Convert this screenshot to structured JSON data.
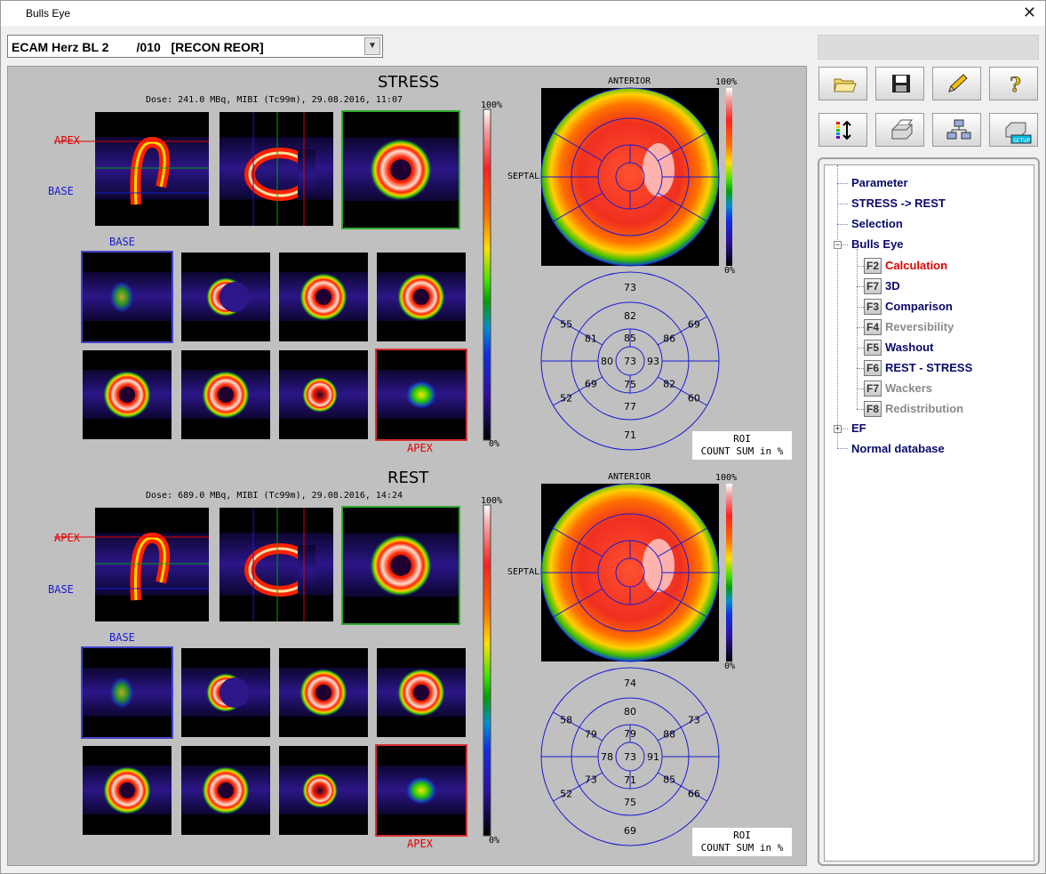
{
  "window": {
    "title": "Bulls Eye",
    "close_glyph": "✕"
  },
  "study": {
    "selected": "ECAM Herz BL 2        /010   [RECON REOR]"
  },
  "toolbar": {
    "row1": [
      "folder-open-icon",
      "save-disk-icon",
      "pencil-edit-icon",
      "help-question-icon"
    ],
    "row2": [
      "colormap-scale-icon",
      "print-icon",
      "network-icon",
      "print-setup-icon"
    ],
    "setup_label": "SETUP"
  },
  "stress": {
    "title": "STRESS",
    "dose": "Dose: 241.0 MBq, MIBI (Tc99m), 29.08.2016, 11:07",
    "apex": "APEX",
    "base": "BASE",
    "base2": "BASE",
    "apex2": "APEX",
    "colorbar_top": "100%",
    "colorbar_bottom": "0%",
    "polar_top": "100%",
    "polar_bottom": "0%",
    "anterior": "ANTERIOR",
    "septal": "SEPTAL",
    "roi_line1": "ROI",
    "roi_line2": "COUNT SUM in %",
    "segments": {
      "outer": [
        "73",
        "69",
        "60",
        "71",
        "52",
        "55"
      ],
      "mid": [
        "82",
        "86",
        "82",
        "77",
        "69",
        "81"
      ],
      "inner": [
        "85",
        "93",
        "75",
        "80"
      ],
      "apex": "73"
    }
  },
  "rest": {
    "title": "REST",
    "dose": "Dose: 689.0 MBq, MIBI (Tc99m), 29.08.2016, 14:24",
    "apex": "APEX",
    "base": "BASE",
    "base2": "BASE",
    "apex2": "APEX",
    "colorbar_top": "100%",
    "colorbar_bottom": "0%",
    "polar_top": "100%",
    "polar_bottom": "0%",
    "anterior": "ANTERIOR",
    "septal": "SEPTAL",
    "roi_line1": "ROI",
    "roi_line2": "COUNT SUM in %",
    "segments": {
      "outer": [
        "74",
        "73",
        "66",
        "69",
        "52",
        "58"
      ],
      "mid": [
        "80",
        "88",
        "85",
        "75",
        "73",
        "79"
      ],
      "inner": [
        "79",
        "91",
        "71",
        "78"
      ],
      "apex": "73"
    }
  },
  "tree": {
    "parameter": "Parameter",
    "stress_rest": "STRESS -> REST",
    "selection": "Selection",
    "bulls_eye": "Bulls Eye",
    "items": [
      {
        "key": "F2",
        "label": "Calculation",
        "state": "active"
      },
      {
        "key": "F7",
        "label": "3D",
        "state": "normal"
      },
      {
        "key": "F3",
        "label": "Comparison",
        "state": "normal"
      },
      {
        "key": "F4",
        "label": "Reversibility",
        "state": "disabled"
      },
      {
        "key": "F5",
        "label": "Washout",
        "state": "normal"
      },
      {
        "key": "F6",
        "label": "REST - STRESS",
        "state": "normal"
      },
      {
        "key": "F7",
        "label": "Wackers",
        "state": "disabled"
      },
      {
        "key": "F8",
        "label": "Redistribution",
        "state": "disabled"
      }
    ],
    "ef": "EF",
    "normal_db": "Normal database",
    "expander_minus": "−",
    "expander_plus": "+"
  },
  "colors": {
    "active": "#e00000",
    "normal": "#0a0a6a",
    "disabled": "#8a8a8a",
    "grid": "#1a1ad0"
  }
}
